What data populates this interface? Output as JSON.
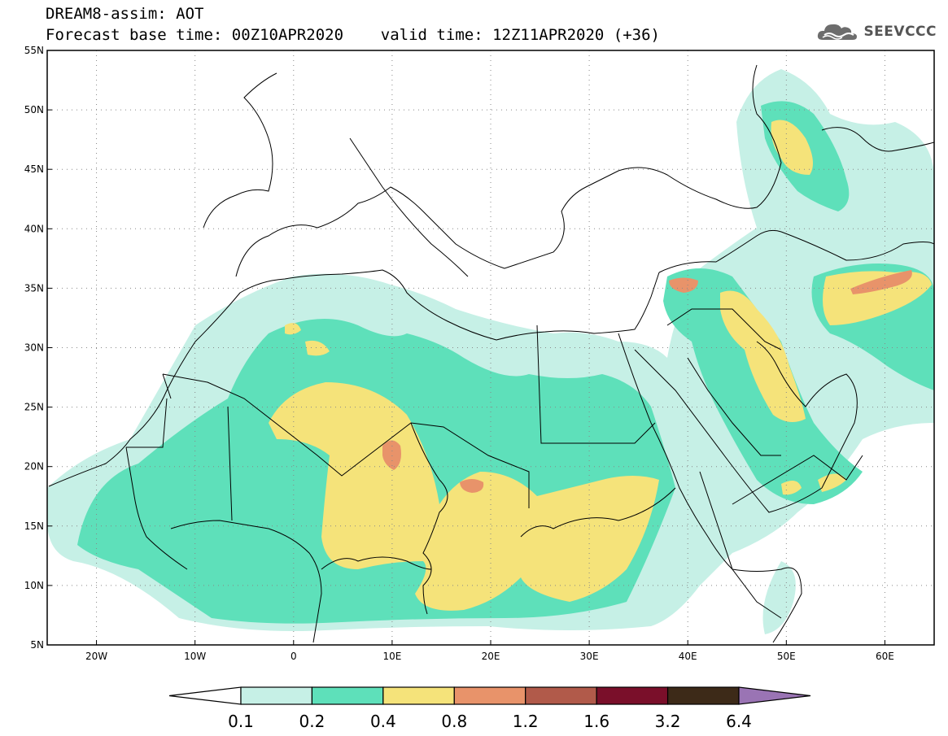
{
  "header": {
    "line1": "DREAM8-assim: AOT",
    "line2": "Forecast base time: 00Z10APR2020    valid time: 12Z11APR2020 (+36)",
    "logo_text": "SEEVCCC"
  },
  "map": {
    "lon_range": [
      -25,
      65
    ],
    "lat_range": [
      5,
      55
    ],
    "lon_ticks": [
      {
        "value": -20,
        "label": "20W"
      },
      {
        "value": -10,
        "label": "10W"
      },
      {
        "value": 0,
        "label": "0"
      },
      {
        "value": 10,
        "label": "10E"
      },
      {
        "value": 20,
        "label": "20E"
      },
      {
        "value": 30,
        "label": "30E"
      },
      {
        "value": 40,
        "label": "40E"
      },
      {
        "value": 50,
        "label": "50E"
      },
      {
        "value": 60,
        "label": "60E"
      }
    ],
    "lat_ticks": [
      {
        "value": 55,
        "label": "55N"
      },
      {
        "value": 50,
        "label": "50N"
      },
      {
        "value": 45,
        "label": "45N"
      },
      {
        "value": 40,
        "label": "40N"
      },
      {
        "value": 35,
        "label": "35N"
      },
      {
        "value": 30,
        "label": "30N"
      },
      {
        "value": 25,
        "label": "25N"
      },
      {
        "value": 20,
        "label": "20N"
      },
      {
        "value": 15,
        "label": "15N"
      },
      {
        "value": 10,
        "label": "10N"
      },
      {
        "value": 5,
        "label": "5N"
      }
    ],
    "grid": "dotted"
  },
  "colorbar": {
    "levels": [
      "0.1",
      "0.2",
      "0.4",
      "0.8",
      "1.2",
      "1.6",
      "3.2",
      "6.4"
    ],
    "colors": [
      "#ffffff",
      "#c6f0e6",
      "#5ee0ba",
      "#f5e37a",
      "#e8936a",
      "#b15a4a",
      "#7a0f2a",
      "#3d2a18",
      "#9a74b4"
    ],
    "extend": "both"
  }
}
